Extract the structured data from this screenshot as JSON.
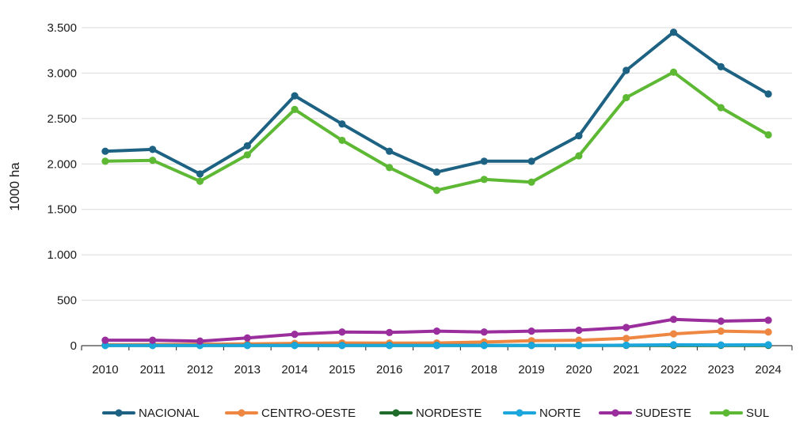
{
  "chart_data": {
    "type": "line",
    "ylabel": "1000 ha",
    "xlabel": "",
    "ylim": [
      0,
      3500
    ],
    "yticks": [
      0,
      500,
      1000,
      1500,
      2000,
      2500,
      3000,
      3500
    ],
    "ytick_labels": [
      "0",
      "500",
      "1.000",
      "1.500",
      "2.000",
      "2.500",
      "3.000",
      "3.500"
    ],
    "categories": [
      "2010",
      "2011",
      "2012",
      "2013",
      "2014",
      "2015",
      "2016",
      "2017",
      "2018",
      "2019",
      "2020",
      "2021",
      "2022",
      "2023",
      "2024"
    ],
    "grid": "horizontal",
    "legend_position": "bottom",
    "series": [
      {
        "name": "NACIONAL",
        "color": "#1d6283",
        "values": [
          2140,
          2160,
          1890,
          2200,
          2750,
          2440,
          2140,
          1910,
          2030,
          2030,
          2310,
          3030,
          3450,
          3070,
          2770
        ]
      },
      {
        "name": "CENTRO-OESTE",
        "color": "#ee8742",
        "values": [
          10,
          12,
          15,
          20,
          25,
          30,
          28,
          30,
          40,
          55,
          60,
          80,
          130,
          160,
          150
        ]
      },
      {
        "name": "NORDESTE",
        "color": "#1e6b2a",
        "values": [
          3,
          3,
          3,
          3,
          3,
          3,
          3,
          3,
          3,
          3,
          3,
          3,
          3,
          3,
          3
        ]
      },
      {
        "name": "NORTE",
        "color": "#1ba6dc",
        "values": [
          2,
          2,
          2,
          2,
          2,
          2,
          2,
          2,
          2,
          2,
          2,
          5,
          10,
          8,
          10
        ]
      },
      {
        "name": "SUDESTE",
        "color": "#9a2e9d",
        "values": [
          60,
          60,
          50,
          85,
          125,
          150,
          145,
          160,
          150,
          160,
          170,
          200,
          290,
          270,
          280
        ]
      },
      {
        "name": "SUL",
        "color": "#5db834",
        "values": [
          2030,
          2040,
          1810,
          2100,
          2600,
          2260,
          1960,
          1710,
          1830,
          1800,
          2090,
          2730,
          3010,
          2620,
          2320
        ]
      }
    ]
  }
}
